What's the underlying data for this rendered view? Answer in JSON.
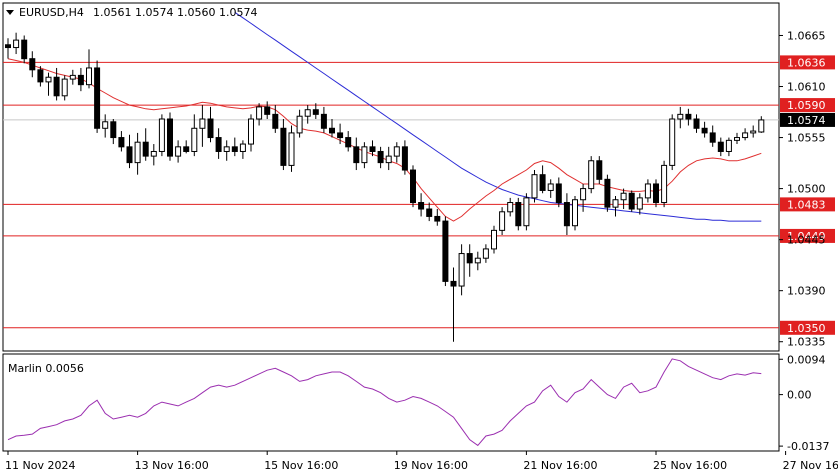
{
  "header": {
    "symbol": "EURUSD,H4",
    "ohlc": "1.0561 1.0574 1.0560 1.0574"
  },
  "indicator": {
    "label": "Marlin 0.0056"
  },
  "colors": {
    "level_line": "#e02020",
    "level_label_bg": "#e02020",
    "current_price_bg": "#000000",
    "ma_fast": "#e03030",
    "ma_slow": "#2c2cd6",
    "oscillator": "#9b2fb0",
    "grid": "#c8c8c8",
    "bull_body": "#ffffff",
    "bear_body": "#000000"
  },
  "chart_data": [
    {
      "type": "candlestick",
      "title": "EURUSD,H4",
      "y_ticks": [
        "1.0665",
        "1.0610",
        "1.0555",
        "1.0500",
        "1.0445",
        "1.0390",
        "1.0335"
      ],
      "y_tick_values": [
        1.0665,
        1.061,
        1.0555,
        1.05,
        1.0445,
        1.039,
        1.0335
      ],
      "ylim": [
        1.0325,
        1.07
      ],
      "x_ticks": [
        "11 Nov 2024",
        "13 Nov 16:00",
        "15 Nov 16:00",
        "19 Nov 16:00",
        "21 Nov 16:00",
        "25 Nov 16:00",
        "27 Nov 16:00"
      ],
      "x_tick_positions": [
        0,
        16,
        32,
        48,
        64,
        80,
        96
      ],
      "levels": [
        {
          "label": "1.0636",
          "value": 1.0636
        },
        {
          "label": "1.0590",
          "value": 1.059
        },
        {
          "label": "1.0483",
          "value": 1.0483
        },
        {
          "label": "1.0449",
          "value": 1.0449
        },
        {
          "label": "1.0350",
          "value": 1.035
        }
      ],
      "current_price": {
        "label": "1.0574",
        "value": 1.0574
      },
      "ohlc": [
        [
          1.0655,
          1.0662,
          1.064,
          1.0652
        ],
        [
          1.0652,
          1.0668,
          1.0645,
          1.066
        ],
        [
          1.066,
          1.0665,
          1.0635,
          1.064
        ],
        [
          1.064,
          1.0648,
          1.062,
          1.0628
        ],
        [
          1.0628,
          1.0632,
          1.061,
          1.0615
        ],
        [
          1.0615,
          1.0625,
          1.06,
          1.062
        ],
        [
          1.062,
          1.063,
          1.0595,
          1.06
        ],
        [
          1.06,
          1.0622,
          1.0595,
          1.0618
        ],
        [
          1.0618,
          1.0628,
          1.0612,
          1.0622
        ],
        [
          1.0622,
          1.063,
          1.0605,
          1.0612
        ],
        [
          1.0612,
          1.065,
          1.0608,
          1.063
        ],
        [
          1.063,
          1.0638,
          1.056,
          1.0565
        ],
        [
          1.0565,
          1.058,
          1.0555,
          1.0572
        ],
        [
          1.0572,
          1.0575,
          1.0548,
          1.0555
        ],
        [
          1.0555,
          1.0562,
          1.054,
          1.0545
        ],
        [
          1.0545,
          1.0558,
          1.0522,
          1.0528
        ],
        [
          1.0528,
          1.056,
          1.0515,
          1.055
        ],
        [
          1.055,
          1.0565,
          1.053,
          1.0535
        ],
        [
          1.0535,
          1.0548,
          1.0525,
          1.054
        ],
        [
          1.054,
          1.058,
          1.0535,
          1.0575
        ],
        [
          1.0575,
          1.0582,
          1.053,
          1.0535
        ],
        [
          1.0535,
          1.0552,
          1.0528,
          1.0545
        ],
        [
          1.0545,
          1.0552,
          1.0538,
          1.054
        ],
        [
          1.054,
          1.058,
          1.0535,
          1.0565
        ],
        [
          1.0565,
          1.059,
          1.0545,
          1.0575
        ],
        [
          1.0575,
          1.0588,
          1.055,
          1.0555
        ],
        [
          1.0555,
          1.0565,
          1.0532,
          1.054
        ],
        [
          1.054,
          1.0552,
          1.053,
          1.0545
        ],
        [
          1.0545,
          1.0555,
          1.0535,
          1.054
        ],
        [
          1.054,
          1.0552,
          1.0532,
          1.0548
        ],
        [
          1.0548,
          1.058,
          1.054,
          1.0575
        ],
        [
          1.0575,
          1.0592,
          1.0568,
          1.0588
        ],
        [
          1.0588,
          1.0594,
          1.0575,
          1.058
        ],
        [
          1.058,
          1.059,
          1.056,
          1.0565
        ],
        [
          1.0565,
          1.0575,
          1.052,
          1.0525
        ],
        [
          1.0525,
          1.0568,
          1.0518,
          1.056
        ],
        [
          1.056,
          1.0585,
          1.0555,
          1.0578
        ],
        [
          1.0578,
          1.059,
          1.057,
          1.0585
        ],
        [
          1.0585,
          1.0592,
          1.0575,
          1.058
        ],
        [
          1.058,
          1.0588,
          1.056,
          1.0565
        ],
        [
          1.0565,
          1.0575,
          1.0555,
          1.056
        ],
        [
          1.056,
          1.057,
          1.0548,
          1.0555
        ],
        [
          1.0555,
          1.0562,
          1.054,
          1.0545
        ],
        [
          1.0545,
          1.0555,
          1.052,
          1.0528
        ],
        [
          1.0528,
          1.055,
          1.0522,
          1.0545
        ],
        [
          1.0545,
          1.0552,
          1.0535,
          1.054
        ],
        [
          1.054,
          1.0545,
          1.0522,
          1.0528
        ],
        [
          1.0528,
          1.0545,
          1.052,
          1.0535
        ],
        [
          1.0535,
          1.055,
          1.0528,
          1.0545
        ],
        [
          1.0545,
          1.0552,
          1.0515,
          1.052
        ],
        [
          1.052,
          1.0525,
          1.048,
          1.0485
        ],
        [
          1.0485,
          1.0495,
          1.047,
          1.0478
        ],
        [
          1.0478,
          1.0485,
          1.0465,
          1.047
        ],
        [
          1.047,
          1.0478,
          1.046,
          1.0465
        ],
        [
          1.0465,
          1.047,
          1.0395,
          1.04
        ],
        [
          1.04,
          1.0415,
          1.0335,
          1.0395
        ],
        [
          1.0395,
          1.044,
          1.0385,
          1.043
        ],
        [
          1.043,
          1.044,
          1.0405,
          1.042
        ],
        [
          1.042,
          1.0432,
          1.0412,
          1.0425
        ],
        [
          1.0425,
          1.044,
          1.042,
          1.0435
        ],
        [
          1.0435,
          1.046,
          1.043,
          1.0455
        ],
        [
          1.0455,
          1.048,
          1.045,
          1.0475
        ],
        [
          1.0475,
          1.049,
          1.047,
          1.0485
        ],
        [
          1.0485,
          1.049,
          1.0455,
          1.046
        ],
        [
          1.046,
          1.0495,
          1.0455,
          1.049
        ],
        [
          1.049,
          1.052,
          1.0485,
          1.0515
        ],
        [
          1.0515,
          1.0525,
          1.0495,
          1.0498
        ],
        [
          1.0498,
          1.051,
          1.049,
          1.0505
        ],
        [
          1.0505,
          1.0512,
          1.048,
          1.0485
        ],
        [
          1.0485,
          1.0495,
          1.045,
          1.046
        ],
        [
          1.046,
          1.0492,
          1.0455,
          1.0488
        ],
        [
          1.0488,
          1.0505,
          1.0475,
          1.05
        ],
        [
          1.05,
          1.0535,
          1.0495,
          1.053
        ],
        [
          1.053,
          1.0535,
          1.0505,
          1.051
        ],
        [
          1.051,
          1.0515,
          1.0475,
          1.048
        ],
        [
          1.048,
          1.0492,
          1.047,
          1.0488
        ],
        [
          1.0488,
          1.05,
          1.0478,
          1.0495
        ],
        [
          1.0495,
          1.0498,
          1.0475,
          1.0478
        ],
        [
          1.0478,
          1.0495,
          1.0472,
          1.049
        ],
        [
          1.049,
          1.051,
          1.0485,
          1.0505
        ],
        [
          1.0505,
          1.051,
          1.048,
          1.0485
        ],
        [
          1.0485,
          1.053,
          1.048,
          1.0525
        ],
        [
          1.0525,
          1.058,
          1.052,
          1.0575
        ],
        [
          1.0575,
          1.0588,
          1.0565,
          1.058
        ],
        [
          1.058,
          1.0586,
          1.0568,
          1.0575
        ],
        [
          1.0575,
          1.058,
          1.056,
          1.0565
        ],
        [
          1.0565,
          1.0572,
          1.0555,
          1.056
        ],
        [
          1.056,
          1.0568,
          1.0545,
          1.055
        ],
        [
          1.055,
          1.0555,
          1.0535,
          1.054
        ],
        [
          1.054,
          1.0555,
          1.0535,
          1.0552
        ],
        [
          1.0552,
          1.056,
          1.0548,
          1.0555
        ],
        [
          1.0555,
          1.0565,
          1.0552,
          1.056
        ],
        [
          1.056,
          1.0568,
          1.0555,
          1.0562
        ],
        [
          1.0561,
          1.0578,
          1.056,
          1.0574
        ]
      ],
      "ma_fast": [
        1.064,
        1.0638,
        1.0636,
        1.0633,
        1.063,
        1.0627,
        1.0624,
        1.0622,
        1.062,
        1.0618,
        1.0614,
        1.0608,
        1.0603,
        1.0598,
        1.0594,
        1.059,
        1.0588,
        1.0586,
        1.0585,
        1.0586,
        1.0587,
        1.0588,
        1.0589,
        1.0591,
        1.0593,
        1.0592,
        1.059,
        1.0588,
        1.0587,
        1.0586,
        1.0587,
        1.0589,
        1.0588,
        1.0585,
        1.0578,
        1.057,
        1.0565,
        1.0563,
        1.0562,
        1.056,
        1.0556,
        1.0552,
        1.0548,
        1.0544,
        1.054,
        1.0537,
        1.0534,
        1.053,
        1.0527,
        1.0522,
        1.0512,
        1.05,
        1.049,
        1.048,
        1.047,
        1.0465,
        1.047,
        1.0478,
        1.0485,
        1.0492,
        1.0498,
        1.0505,
        1.051,
        1.0515,
        1.052,
        1.0527,
        1.053,
        1.0528,
        1.0522,
        1.0515,
        1.051,
        1.0505,
        1.0505,
        1.0505,
        1.0502,
        1.05,
        1.0498,
        1.0497,
        1.0497,
        1.0498,
        1.0497,
        1.05,
        1.0508,
        1.0518,
        1.0525,
        1.053,
        1.0532,
        1.0533,
        1.0532,
        1.053,
        1.053,
        1.0532,
        1.0535,
        1.0538
      ],
      "ma_slow": [
        null,
        null,
        null,
        null,
        null,
        null,
        null,
        null,
        null,
        null,
        null,
        null,
        null,
        null,
        null,
        null,
        null,
        null,
        null,
        null,
        null,
        null,
        null,
        null,
        null,
        null,
        null,
        null,
        1.069,
        1.0684,
        1.0678,
        1.0672,
        1.0666,
        1.066,
        1.0654,
        1.0648,
        1.0642,
        1.0636,
        1.063,
        1.0624,
        1.0618,
        1.0612,
        1.0606,
        1.06,
        1.0594,
        1.0588,
        1.0582,
        1.0576,
        1.057,
        1.0564,
        1.0558,
        1.0552,
        1.0546,
        1.054,
        1.0534,
        1.0528,
        1.0522,
        1.0517,
        1.0512,
        1.0507,
        1.0503,
        1.0499,
        1.0496,
        1.0493,
        1.0491,
        1.0489,
        1.0487,
        1.0485,
        1.0484,
        1.0483,
        1.0482,
        1.0481,
        1.048,
        1.0479,
        1.0478,
        1.0477,
        1.0476,
        1.0475,
        1.0474,
        1.0473,
        1.0472,
        1.0471,
        1.047,
        1.0469,
        1.0468,
        1.0467,
        1.0467,
        1.0466,
        1.0466,
        1.0465,
        1.0465,
        1.0465,
        1.0465,
        1.0465
      ]
    },
    {
      "type": "line",
      "title": "Marlin 0.0056",
      "y_ticks": [
        "0.0094",
        "0.00",
        "-0.0137"
      ],
      "y_tick_values": [
        0.0094,
        0.0,
        -0.0137
      ],
      "ylim": [
        -0.015,
        0.0108
      ],
      "series": [
        {
          "values": [
            -0.012,
            -0.011,
            -0.0108,
            -0.0105,
            -0.009,
            -0.0085,
            -0.008,
            -0.007,
            -0.0065,
            -0.0055,
            -0.003,
            -0.0015,
            -0.005,
            -0.0065,
            -0.006,
            -0.0055,
            -0.006,
            -0.005,
            -0.003,
            -0.002,
            -0.0025,
            -0.003,
            -0.002,
            -0.001,
            0.0005,
            0.002,
            0.0025,
            0.002,
            0.0025,
            0.0035,
            0.0045,
            0.0055,
            0.0065,
            0.007,
            0.006,
            0.005,
            0.0035,
            0.004,
            0.005,
            0.0055,
            0.006,
            0.006,
            0.005,
            0.0035,
            0.002,
            0.0015,
            0.0005,
            -0.001,
            -0.002,
            -0.0015,
            -0.0005,
            -0.001,
            -0.002,
            -0.003,
            -0.0045,
            -0.006,
            -0.009,
            -0.012,
            -0.0135,
            -0.011,
            -0.0105,
            -0.0095,
            -0.007,
            -0.005,
            -0.003,
            -0.002,
            0.001,
            0.0025,
            -0.0005,
            -0.002,
            0.0005,
            0.0015,
            0.004,
            0.002,
            0.0,
            -0.001,
            0.002,
            0.003,
            0.0005,
            0.001,
            0.002,
            0.006,
            0.0095,
            0.009,
            0.0075,
            0.0065,
            0.0055,
            0.0045,
            0.004,
            0.005,
            0.0055,
            0.0052,
            0.0058,
            0.0056
          ]
        }
      ]
    }
  ]
}
